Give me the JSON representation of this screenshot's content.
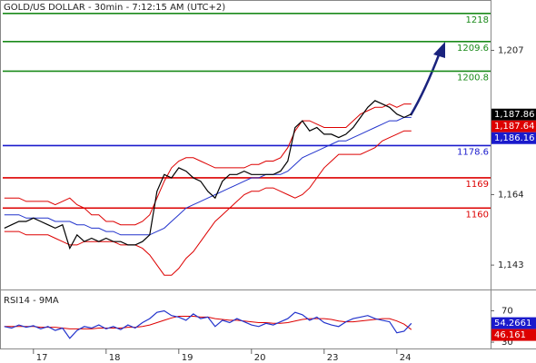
{
  "chart_data": [
    {
      "type": "line",
      "title": "GOLD/US DOLLAR - 30min - 7:12:15 AM (UTC+2)",
      "xlim": [
        -0.6,
        66.9
      ],
      "xticks": [
        {
          "value": 4,
          "label": "17"
        },
        {
          "value": 14,
          "label": "18"
        },
        {
          "value": 24,
          "label": "19"
        },
        {
          "value": 34,
          "label": "20"
        },
        {
          "value": 44,
          "label": "23"
        },
        {
          "value": 54,
          "label": "24"
        }
      ],
      "ylim": [
        1136,
        1222
      ],
      "yticks": [
        {
          "value": 1207,
          "label": "1,207"
        },
        {
          "value": 1164,
          "label": "1,164"
        },
        {
          "value": 1143,
          "label": "1,143"
        }
      ],
      "levels": [
        {
          "value": 1218,
          "color": "#1a8a1a"
        },
        {
          "value": 1209.6,
          "color": "#1a8a1a"
        },
        {
          "value": 1200.8,
          "color": "#1a8a1a"
        },
        {
          "value": 1178.6,
          "color": "#1a1acc"
        },
        {
          "value": 1169,
          "color": "#dd0000"
        },
        {
          "value": 1160,
          "color": "#dd0000"
        }
      ],
      "price_labels": [
        {
          "value": 1187.86,
          "label": "1,187.86",
          "color": "#000000"
        },
        {
          "value": 1187.64,
          "label": "1,187.64",
          "color": "#dd0000"
        },
        {
          "value": 1186.16,
          "label": "1,186.16",
          "color": "#1a1acc"
        }
      ],
      "series": [
        {
          "color": "#dd0000",
          "values": [
            1163,
            1163,
            1163,
            1162,
            1162,
            1162,
            1162,
            1161,
            1162,
            1163,
            1161,
            1160,
            1158,
            1158,
            1156,
            1156,
            1155,
            1155,
            1155,
            1156,
            1158,
            1163,
            1168,
            1172,
            1174,
            1175,
            1175,
            1174,
            1173,
            1172,
            1172,
            1172,
            1172,
            1172,
            1173,
            1173,
            1174,
            1174,
            1175,
            1178,
            1183,
            1186,
            1186,
            1185,
            1184,
            1184,
            1184,
            1184,
            1186,
            1188,
            1189,
            1190,
            1190,
            1191,
            1190,
            1191,
            1191
          ]
        },
        {
          "color": "#dd0000",
          "values": [
            1153,
            1153,
            1153,
            1152,
            1152,
            1152,
            1152,
            1151,
            1150,
            1149,
            1149,
            1150,
            1150,
            1150,
            1150,
            1150,
            1149,
            1149,
            1149,
            1148,
            1146,
            1143,
            1140,
            1140,
            1142,
            1145,
            1147,
            1150,
            1153,
            1156,
            1158,
            1160,
            1162,
            1164,
            1165,
            1165,
            1166,
            1166,
            1165,
            1164,
            1163,
            1164,
            1166,
            1169,
            1172,
            1174,
            1176,
            1176,
            1176,
            1176,
            1177,
            1178,
            1180,
            1181,
            1182,
            1183,
            1183
          ]
        },
        {
          "color": "#2233cc",
          "values": [
            1158,
            1158,
            1158,
            1157,
            1157,
            1157,
            1157,
            1156,
            1156,
            1156,
            1155,
            1155,
            1154,
            1154,
            1153,
            1153,
            1152,
            1152,
            1152,
            1152,
            1152,
            1153,
            1154,
            1156,
            1158,
            1160,
            1161,
            1162,
            1163,
            1164,
            1165,
            1166,
            1167,
            1168,
            1169,
            1169,
            1170,
            1170,
            1170,
            1171,
            1173,
            1175,
            1176,
            1177,
            1178,
            1179,
            1180,
            1180,
            1181,
            1182,
            1183,
            1184,
            1185,
            1186,
            1186,
            1187,
            1187
          ]
        },
        {
          "color": "#000000",
          "values": [
            1154,
            1155,
            1156,
            1156,
            1157,
            1156,
            1155,
            1154,
            1155,
            1148,
            1152,
            1150,
            1151,
            1150,
            1151,
            1150,
            1150,
            1149,
            1149,
            1150,
            1152,
            1165,
            1170,
            1169,
            1172,
            1171,
            1169,
            1168,
            1165,
            1163,
            1168,
            1170,
            1170,
            1171,
            1170,
            1170,
            1170,
            1170,
            1171,
            1174,
            1184,
            1186,
            1183,
            1184,
            1182,
            1182,
            1181,
            1182,
            1184,
            1187,
            1190,
            1192,
            1191,
            1190,
            1188,
            1187,
            1188
          ]
        }
      ]
    },
    {
      "type": "line",
      "title": "RSI14 - 9MA",
      "ylim": [
        22,
        96
      ],
      "yticks": [
        70,
        30
      ],
      "markers": [
        {
          "value": 54.2661,
          "color": "#1a1acc"
        },
        {
          "value": 46.161,
          "color": "#dd0000"
        }
      ],
      "series": [
        {
          "color": "#dd0000",
          "values": [
            50,
            50,
            50,
            50,
            50,
            49,
            49,
            49,
            48,
            47,
            47,
            47,
            47,
            48,
            48,
            48,
            48,
            49,
            49,
            50,
            52,
            55,
            58,
            61,
            63,
            63,
            63,
            62,
            62,
            60,
            59,
            58,
            58,
            57,
            56,
            55,
            55,
            54,
            54,
            55,
            57,
            59,
            60,
            60,
            60,
            59,
            57,
            56,
            56,
            57,
            58,
            59,
            60,
            60,
            57,
            53,
            46
          ]
        },
        {
          "color": "#2233cc",
          "values": [
            50,
            48,
            52,
            49,
            51,
            47,
            50,
            45,
            48,
            35,
            45,
            50,
            48,
            52,
            47,
            50,
            46,
            52,
            48,
            55,
            60,
            68,
            70,
            64,
            62,
            58,
            66,
            60,
            62,
            50,
            58,
            55,
            60,
            56,
            52,
            50,
            54,
            52,
            56,
            60,
            68,
            65,
            58,
            62,
            55,
            52,
            50,
            56,
            60,
            62,
            64,
            60,
            58,
            56,
            42,
            44,
            54
          ]
        }
      ]
    }
  ]
}
